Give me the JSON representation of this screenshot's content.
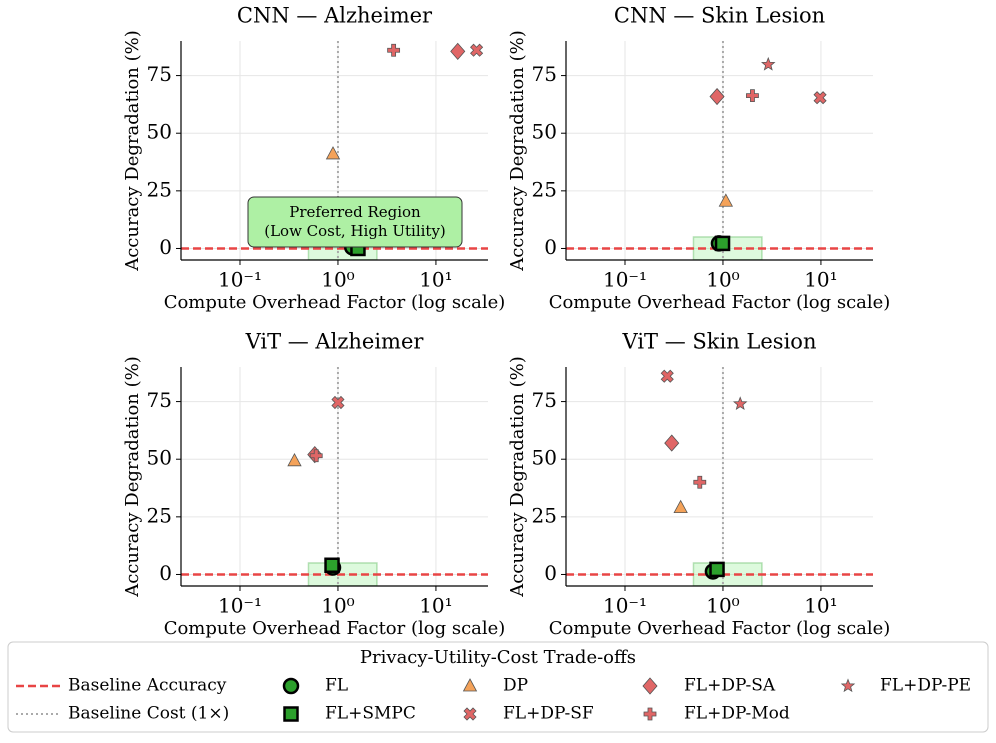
{
  "chart_data": [
    {
      "type": "scatter",
      "title": "CNN — Alzheimer",
      "xlabel": "Compute Overhead Factor (log scale)",
      "ylabel": "Accuracy Degradation (%)",
      "log_x": true,
      "grid": true,
      "xlim": [
        0.025,
        34
      ],
      "ylim": [
        -5,
        90
      ],
      "xticks": [
        {
          "value": 0.1,
          "label": "10⁻¹"
        },
        {
          "value": 1,
          "label": "10⁰"
        },
        {
          "value": 10,
          "label": "10¹"
        }
      ],
      "yticks": [
        0,
        25,
        50,
        75
      ],
      "baseline_y": 0,
      "baseline_x": 1,
      "region": {
        "x": [
          0.5,
          2.5
        ],
        "y": [
          -5,
          5
        ]
      },
      "annotation": [
        "Preferred Region",
        "(Low Cost, High Utility)"
      ],
      "series": [
        {
          "x": [
            1.4
          ],
          "values": [
            0.5
          ]
        },
        {
          "x": [
            1.6
          ],
          "values": [
            0
          ]
        },
        {
          "x": [
            0.89
          ],
          "values": [
            41
          ]
        },
        {
          "x": [
            26
          ],
          "values": [
            86
          ]
        },
        {
          "x": [
            16.7
          ],
          "values": [
            85.5
          ]
        },
        {
          "x": [
            3.7
          ],
          "values": [
            86
          ]
        },
        {
          "x": [],
          "values": []
        }
      ]
    },
    {
      "type": "scatter",
      "title": "CNN — Skin Lesion",
      "xlabel": "Compute Overhead Factor (log scale)",
      "ylabel": "Accuracy Degradation (%)",
      "log_x": true,
      "grid": true,
      "xlim": [
        0.025,
        34
      ],
      "ylim": [
        -5,
        90
      ],
      "xticks": [
        {
          "value": 0.1,
          "label": "10⁻¹"
        },
        {
          "value": 1,
          "label": "10⁰"
        },
        {
          "value": 10,
          "label": "10¹"
        }
      ],
      "yticks": [
        0,
        25,
        50,
        75
      ],
      "baseline_y": 0,
      "baseline_x": 1,
      "region": {
        "x": [
          0.5,
          2.5
        ],
        "y": [
          -5,
          5
        ]
      },
      "series": [
        {
          "x": [
            0.91
          ],
          "values": [
            2.2
          ]
        },
        {
          "x": [
            0.99
          ],
          "values": [
            2.2
          ]
        },
        {
          "x": [
            1.07
          ],
          "values": [
            20.5
          ]
        },
        {
          "x": [
            9.8
          ],
          "values": [
            65.4
          ]
        },
        {
          "x": [
            0.87
          ],
          "values": [
            65.9
          ]
        },
        {
          "x": [
            2.0
          ],
          "values": [
            66.3
          ]
        },
        {
          "x": [
            2.9
          ],
          "values": [
            79.8
          ]
        }
      ]
    },
    {
      "type": "scatter",
      "title": "ViT — Alzheimer",
      "xlabel": "Compute Overhead Factor (log scale)",
      "ylabel": "Accuracy Degradation (%)",
      "log_x": true,
      "grid": true,
      "xlim": [
        0.025,
        34
      ],
      "ylim": [
        -5,
        90
      ],
      "xticks": [
        {
          "value": 0.1,
          "label": "10⁻¹"
        },
        {
          "value": 1,
          "label": "10⁰"
        },
        {
          "value": 10,
          "label": "10¹"
        }
      ],
      "yticks": [
        0,
        25,
        50,
        75
      ],
      "baseline_y": 0,
      "baseline_x": 1,
      "region": {
        "x": [
          0.5,
          2.5
        ],
        "y": [
          -5,
          5
        ]
      },
      "series": [
        {
          "x": [
            0.89
          ],
          "values": [
            3
          ]
        },
        {
          "x": [
            0.87
          ],
          "values": [
            4
          ]
        },
        {
          "x": [
            0.36
          ],
          "values": [
            49.3
          ]
        },
        {
          "x": [
            1.0
          ],
          "values": [
            74.6
          ]
        },
        {
          "x": [
            0.58
          ],
          "values": [
            52
          ]
        },
        {
          "x": [
            0.6
          ],
          "values": [
            51.5
          ]
        },
        {
          "x": [],
          "values": []
        }
      ]
    },
    {
      "type": "scatter",
      "title": "ViT — Skin Lesion",
      "xlabel": "Compute Overhead Factor (log scale)",
      "ylabel": "Accuracy Degradation (%)",
      "log_x": true,
      "grid": true,
      "xlim": [
        0.025,
        34
      ],
      "ylim": [
        -5,
        90
      ],
      "xticks": [
        {
          "value": 0.1,
          "label": "10⁻¹"
        },
        {
          "value": 1,
          "label": "10⁰"
        },
        {
          "value": 10,
          "label": "10¹"
        }
      ],
      "yticks": [
        0,
        25,
        50,
        75
      ],
      "baseline_y": 0,
      "baseline_x": 1,
      "region": {
        "x": [
          0.5,
          2.5
        ],
        "y": [
          -5,
          5
        ]
      },
      "series": [
        {
          "x": [
            0.79
          ],
          "values": [
            1.3
          ]
        },
        {
          "x": [
            0.87
          ],
          "values": [
            2.2
          ]
        },
        {
          "x": [
            0.37
          ],
          "values": [
            29
          ]
        },
        {
          "x": [
            0.27
          ],
          "values": [
            86
          ]
        },
        {
          "x": [
            0.3
          ],
          "values": [
            57
          ]
        },
        {
          "x": [
            0.58
          ],
          "values": [
            40
          ]
        },
        {
          "x": [
            1.5
          ],
          "values": [
            74
          ]
        }
      ]
    }
  ],
  "legend": {
    "title": "Privacy-Utility-Cost Trade-offs",
    "baselines": [
      {
        "name": "Baseline Accuracy",
        "color": "#e84545"
      },
      {
        "name": "Baseline Cost (1×)",
        "color": "#aaaaaa"
      }
    ],
    "series": [
      {
        "name": "FL",
        "color": "#2ca02c",
        "marker": "circle"
      },
      {
        "name": "FL+SMPC",
        "color": "#2ca02c",
        "marker": "square"
      },
      {
        "name": "DP",
        "color": "#f4a259",
        "marker": "triangle"
      },
      {
        "name": "FL+DP-SF",
        "color": "#e06666",
        "marker": "x"
      },
      {
        "name": "FL+DP-SA",
        "color": "#e06666",
        "marker": "diamond"
      },
      {
        "name": "FL+DP-Mod",
        "color": "#e06666",
        "marker": "plus"
      },
      {
        "name": "FL+DP-PE",
        "color": "#e06666",
        "marker": "star"
      }
    ]
  }
}
